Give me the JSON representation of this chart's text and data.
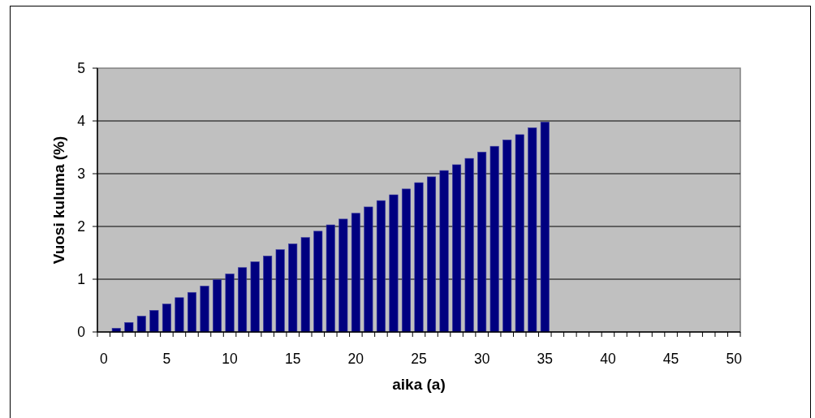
{
  "chart_data": {
    "type": "bar",
    "xlabel": "aika (a)",
    "ylabel": "Vuosi kuluma (%)",
    "categories": [
      "0",
      null,
      null,
      null,
      null,
      "5",
      null,
      null,
      null,
      null,
      "10",
      null,
      null,
      null,
      null,
      "15",
      null,
      null,
      null,
      null,
      "20",
      null,
      null,
      null,
      null,
      "25",
      null,
      null,
      null,
      null,
      "30",
      null,
      null,
      null,
      null,
      "35",
      null,
      null,
      null,
      null,
      "40",
      null,
      null,
      null,
      null,
      "45",
      null,
      null,
      null,
      null,
      "50"
    ],
    "values": [
      null,
      0.07,
      0.18,
      0.3,
      0.41,
      0.53,
      0.65,
      0.75,
      0.87,
      0.99,
      1.1,
      1.22,
      1.33,
      1.44,
      1.56,
      1.67,
      1.79,
      1.91,
      2.03,
      2.14,
      2.25,
      2.37,
      2.49,
      2.6,
      2.71,
      2.83,
      2.94,
      3.06,
      3.17,
      3.29,
      3.41,
      3.52,
      3.64,
      3.74,
      3.87,
      3.98,
      null,
      null,
      null,
      null,
      null,
      null,
      null,
      null,
      null,
      null,
      null,
      null,
      null,
      null,
      null
    ],
    "color": "#000080",
    "ylim": [
      0,
      5
    ],
    "yticks": [
      0,
      1,
      2,
      3,
      4,
      5
    ],
    "grid": "y"
  }
}
